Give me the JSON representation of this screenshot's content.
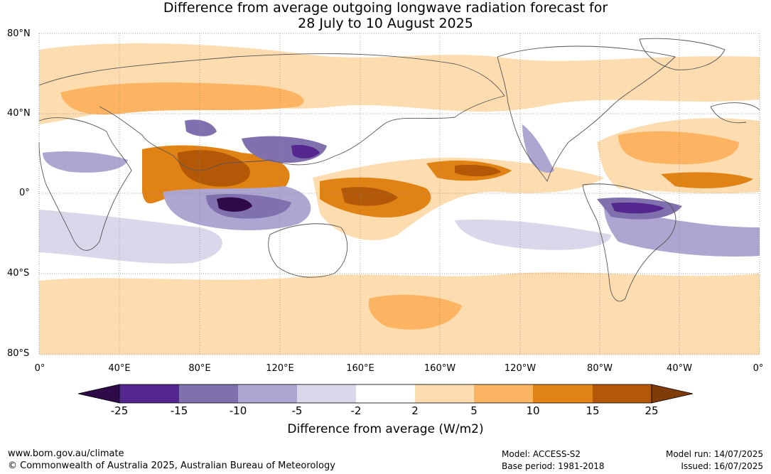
{
  "title_line1": "Difference from average outgoing longwave radiation forecast for",
  "title_line2": "28 July to 10 August 2025",
  "lat_labels": [
    "80°N",
    "40°N",
    "0°",
    "40°S",
    "80°S"
  ],
  "lon_labels": [
    "0°",
    "40°E",
    "80°E",
    "120°E",
    "160°E",
    "160°W",
    "120°W",
    "80°W",
    "40°W",
    "0°"
  ],
  "colorbar": {
    "ticks": [
      "-25",
      "-15",
      "-10",
      "-5",
      "-2",
      "2",
      "5",
      "10",
      "15",
      "25"
    ],
    "colors": [
      "#2e0a4a",
      "#54278f",
      "#8070ad",
      "#aca6d0",
      "#d8d8ea",
      "#ffffff",
      "#fdddb0",
      "#fcb462",
      "#e08214",
      "#b35806",
      "#7f3b08"
    ],
    "label": "Difference from average (W/m2)"
  },
  "footer": {
    "url": "www.bom.gov.au/climate",
    "copyright": "© Commonwealth of Australia 2025, Australian Bureau of Meteorology",
    "model": "Model: ACCESS-S2",
    "base_period": "Base period: 1981-2018",
    "model_run": "Model run: 14/07/2025",
    "issued": "Issued: 16/07/2025"
  }
}
